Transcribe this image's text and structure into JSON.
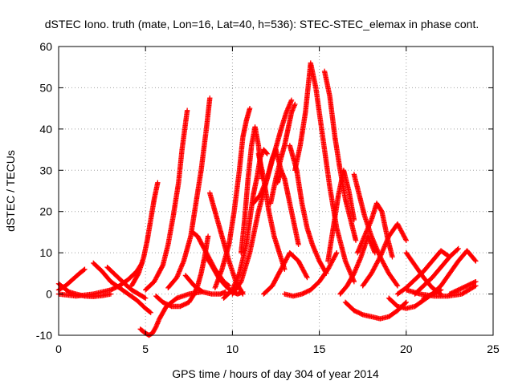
{
  "chart_data": {
    "type": "scatter",
    "title": "dSTEC Iono. truth (mate, Lon=16, Lat=40, h=536): STEC-STEC_elemax in phase cont.",
    "xlabel": "GPS time / hours of day 304 of year 2014",
    "ylabel": "dSTEC  / TECUs",
    "xlim": [
      0,
      25
    ],
    "ylim": [
      -10,
      60
    ],
    "xticks": [
      0,
      5,
      10,
      15,
      20,
      25
    ],
    "yticks": [
      -10,
      0,
      10,
      20,
      30,
      40,
      50,
      60
    ],
    "grid": true,
    "legend": "none",
    "marker": "plus",
    "color": "#ff0000",
    "series": [
      {
        "x": [
          0.0,
          0.3,
          0.6,
          1.0,
          1.5,
          2.0,
          2.5,
          3.0
        ],
        "y": [
          2.5,
          1.5,
          0.5,
          0.0,
          -0.5,
          -0.6,
          -0.4,
          0.0
        ]
      },
      {
        "x": [
          0.0,
          0.4,
          0.8,
          1.2,
          1.5
        ],
        "y": [
          1.0,
          2.0,
          3.5,
          5.0,
          6.0
        ]
      },
      {
        "x": [
          2.0,
          2.5,
          3.0,
          3.5,
          4.0,
          4.5,
          5.0,
          5.3
        ],
        "y": [
          7.5,
          5.5,
          3.0,
          1.5,
          0.0,
          -1.5,
          -3.5,
          -4.5
        ]
      },
      {
        "x": [
          0.0,
          1.0,
          2.0,
          3.0,
          3.5,
          4.0,
          4.5,
          4.8
        ],
        "y": [
          0.0,
          -0.5,
          0.0,
          1.0,
          2.0,
          3.5,
          5.5,
          7.5
        ]
      },
      {
        "x": [
          2.8,
          3.3,
          3.8,
          4.2,
          4.6,
          5.0
        ],
        "y": [
          6.5,
          4.5,
          2.5,
          1.0,
          0.0,
          -1.0
        ]
      },
      {
        "x": [
          4.7,
          5.0,
          5.2,
          5.4,
          5.6,
          5.8,
          6.2,
          6.8,
          7.5,
          8.2
        ],
        "y": [
          -8.5,
          -9.5,
          -10.0,
          -9.5,
          -8.0,
          -6.0,
          -3.0,
          -1.0,
          0.0,
          0.5
        ]
      },
      {
        "x": [
          4.2,
          4.6,
          4.9,
          5.1,
          5.3,
          5.5,
          5.7
        ],
        "y": [
          2.0,
          5.0,
          9.0,
          13.0,
          18.0,
          23.0,
          27.0
        ]
      },
      {
        "x": [
          5.0,
          5.5,
          6.0,
          6.3,
          6.6,
          6.9,
          7.1,
          7.4
        ],
        "y": [
          1.0,
          3.0,
          7.0,
          12.0,
          19.0,
          27.0,
          35.0,
          44.5
        ]
      },
      {
        "x": [
          5.6,
          6.0,
          6.5,
          7.0,
          7.5,
          7.8,
          8.0,
          8.2,
          8.4,
          8.6
        ],
        "y": [
          -0.5,
          -2.0,
          -3.0,
          -3.0,
          -2.0,
          0.0,
          2.0,
          5.0,
          9.0,
          14.0
        ]
      },
      {
        "x": [
          6.3,
          6.8,
          7.2,
          7.6,
          7.9,
          8.2,
          8.5,
          8.7
        ],
        "y": [
          1.5,
          4.0,
          8.0,
          14.0,
          22.0,
          30.0,
          40.0,
          47.5
        ]
      },
      {
        "x": [
          7.3,
          7.8,
          8.3,
          8.8,
          9.3,
          9.6
        ],
        "y": [
          4.5,
          2.0,
          0.5,
          0.0,
          0.0,
          0.5
        ]
      },
      {
        "x": [
          7.7,
          8.0,
          8.5,
          9.0,
          9.5,
          9.8
        ],
        "y": [
          15.0,
          14.0,
          10.0,
          6.0,
          3.0,
          2.0
        ]
      },
      {
        "x": [
          8.5,
          8.8,
          9.2,
          9.6,
          10.0,
          10.3,
          10.6
        ],
        "y": [
          9.0,
          7.0,
          4.0,
          2.0,
          0.5,
          0.0,
          0.5
        ]
      },
      {
        "x": [
          8.7,
          9.0,
          9.4,
          9.8,
          10.2,
          10.6
        ],
        "y": [
          24.5,
          20.0,
          14.0,
          8.0,
          3.0,
          0.0
        ]
      },
      {
        "x": [
          9.0,
          9.4,
          9.8,
          10.1,
          10.4,
          10.6,
          10.8,
          11.0
        ],
        "y": [
          1.5,
          6.0,
          12.0,
          20.0,
          30.0,
          38.0,
          42.0,
          45.0
        ]
      },
      {
        "x": [
          10.5,
          10.7,
          10.9,
          11.1,
          11.3,
          11.5,
          11.7
        ],
        "y": [
          10.0,
          18.0,
          28.0,
          36.0,
          40.5,
          36.0,
          28.0
        ]
      },
      {
        "x": [
          9.5,
          10.0,
          10.4,
          10.8,
          11.0,
          11.2,
          11.4,
          11.6,
          11.8,
          12.0
        ],
        "y": [
          -1.0,
          1.0,
          5.0,
          12.0,
          18.0,
          24.0,
          28.0,
          33.0,
          35.0,
          34.0
        ]
      },
      {
        "x": [
          11.5,
          11.8,
          12.1,
          12.4,
          12.7,
          13.0
        ],
        "y": [
          34.0,
          28.0,
          20.0,
          14.0,
          10.0,
          6.0
        ]
      },
      {
        "x": [
          10.0,
          10.5,
          11.0,
          11.5,
          12.0,
          12.4,
          12.8,
          13.1,
          13.4
        ],
        "y": [
          0.0,
          3.0,
          10.0,
          20.0,
          28.0,
          34.0,
          40.0,
          44.0,
          47.0
        ]
      },
      {
        "x": [
          12.2,
          12.5,
          12.8,
          13.0,
          13.2,
          13.4,
          13.6
        ],
        "y": [
          22.0,
          28.0,
          33.0,
          36.0,
          40.0,
          44.0,
          46.0
        ]
      },
      {
        "x": [
          11.2,
          11.6,
          12.0,
          12.3,
          12.5,
          12.8
        ],
        "y": [
          22.0,
          24.0,
          28.0,
          33.0,
          35.0,
          30.0
        ]
      },
      {
        "x": [
          12.6,
          12.8,
          13.0,
          13.2,
          13.5,
          13.8
        ],
        "y": [
          27.0,
          30.0,
          28.0,
          24.0,
          18.0,
          12.0
        ]
      },
      {
        "x": [
          11.8,
          12.3,
          12.8,
          13.3,
          13.8,
          14.3
        ],
        "y": [
          0.0,
          2.0,
          6.0,
          10.0,
          8.0,
          4.0
        ]
      },
      {
        "x": [
          13.6,
          13.9,
          14.2,
          14.5,
          14.8,
          15.2,
          15.6,
          16.0,
          16.5,
          17.0
        ],
        "y": [
          30.0,
          36.0,
          44.0,
          56.0,
          50.0,
          38.0,
          26.0,
          16.0,
          8.0,
          3.0
        ]
      },
      {
        "x": [
          13.3,
          13.7,
          14.0,
          14.3,
          14.6,
          15.0,
          15.4
        ],
        "y": [
          36.0,
          30.0,
          22.0,
          16.0,
          12.0,
          8.0,
          5.0
        ]
      },
      {
        "x": [
          13.0,
          13.5,
          14.0,
          14.5,
          15.0,
          15.5,
          16.0
        ],
        "y": [
          0.0,
          -0.5,
          0.0,
          1.0,
          3.0,
          6.0,
          10.0
        ]
      },
      {
        "x": [
          15.3,
          15.6,
          15.9,
          16.2,
          16.5,
          16.8,
          17.1
        ],
        "y": [
          54.0,
          48.0,
          38.0,
          30.0,
          23.0,
          18.0,
          13.0
        ]
      },
      {
        "x": [
          15.5,
          15.8,
          16.1,
          16.4,
          16.7,
          17.0
        ],
        "y": [
          8.0,
          16.0,
          24.0,
          30.0,
          25.0,
          18.0
        ]
      },
      {
        "x": [
          16.2,
          16.6,
          17.0,
          17.4,
          17.8,
          18.2
        ],
        "y": [
          0.0,
          2.0,
          5.0,
          9.0,
          14.0,
          10.0
        ]
      },
      {
        "x": [
          17.0,
          17.3,
          17.6,
          18.0,
          18.5,
          19.0,
          19.5
        ],
        "y": [
          29.0,
          24.0,
          19.0,
          14.0,
          9.0,
          5.0,
          2.0
        ]
      },
      {
        "x": [
          17.2,
          17.6,
          18.0,
          18.3,
          18.6,
          18.9,
          19.2
        ],
        "y": [
          10.0,
          14.0,
          18.0,
          22.0,
          20.0,
          14.0,
          9.0
        ]
      },
      {
        "x": [
          16.5,
          17.0,
          17.5,
          18.0,
          18.5,
          19.0,
          19.5,
          20.0
        ],
        "y": [
          -2.0,
          -4.0,
          -5.0,
          -5.5,
          -6.0,
          -5.5,
          -4.0,
          -2.0
        ]
      },
      {
        "x": [
          17.5,
          18.0,
          18.5,
          19.0,
          19.5,
          20.0
        ],
        "y": [
          2.0,
          5.0,
          9.0,
          14.0,
          17.0,
          13.0
        ]
      },
      {
        "x": [
          19.0,
          19.5,
          20.0,
          20.5,
          21.0,
          21.5,
          22.0
        ],
        "y": [
          -1.0,
          -3.0,
          -3.5,
          -3.0,
          -1.5,
          0.0,
          1.0
        ]
      },
      {
        "x": [
          20.0,
          20.5,
          21.0,
          21.5,
          22.0
        ],
        "y": [
          10.0,
          7.0,
          4.0,
          1.5,
          0.0
        ]
      },
      {
        "x": [
          19.5,
          20.0,
          20.5,
          21.0,
          21.5,
          22.0,
          22.5
        ],
        "y": [
          0.0,
          1.5,
          3.5,
          5.5,
          8.0,
          10.5,
          9.0
        ]
      },
      {
        "x": [
          20.5,
          21.0,
          21.5,
          22.0,
          22.5,
          23.0
        ],
        "y": [
          0.0,
          2.0,
          4.0,
          6.5,
          9.0,
          11.0
        ]
      },
      {
        "x": [
          21.0,
          21.5,
          22.0,
          22.5,
          23.0,
          23.5,
          24.0
        ],
        "y": [
          -1.0,
          0.0,
          2.0,
          5.0,
          8.0,
          10.5,
          8.0
        ]
      },
      {
        "x": [
          22.5,
          23.0,
          23.5,
          24.0
        ],
        "y": [
          0.0,
          1.0,
          2.0,
          3.0
        ]
      },
      {
        "x": [
          20.0,
          20.8,
          21.6,
          22.4,
          23.2,
          24.0
        ],
        "y": [
          1.0,
          0.0,
          -0.5,
          -0.5,
          0.0,
          2.0
        ]
      }
    ]
  }
}
